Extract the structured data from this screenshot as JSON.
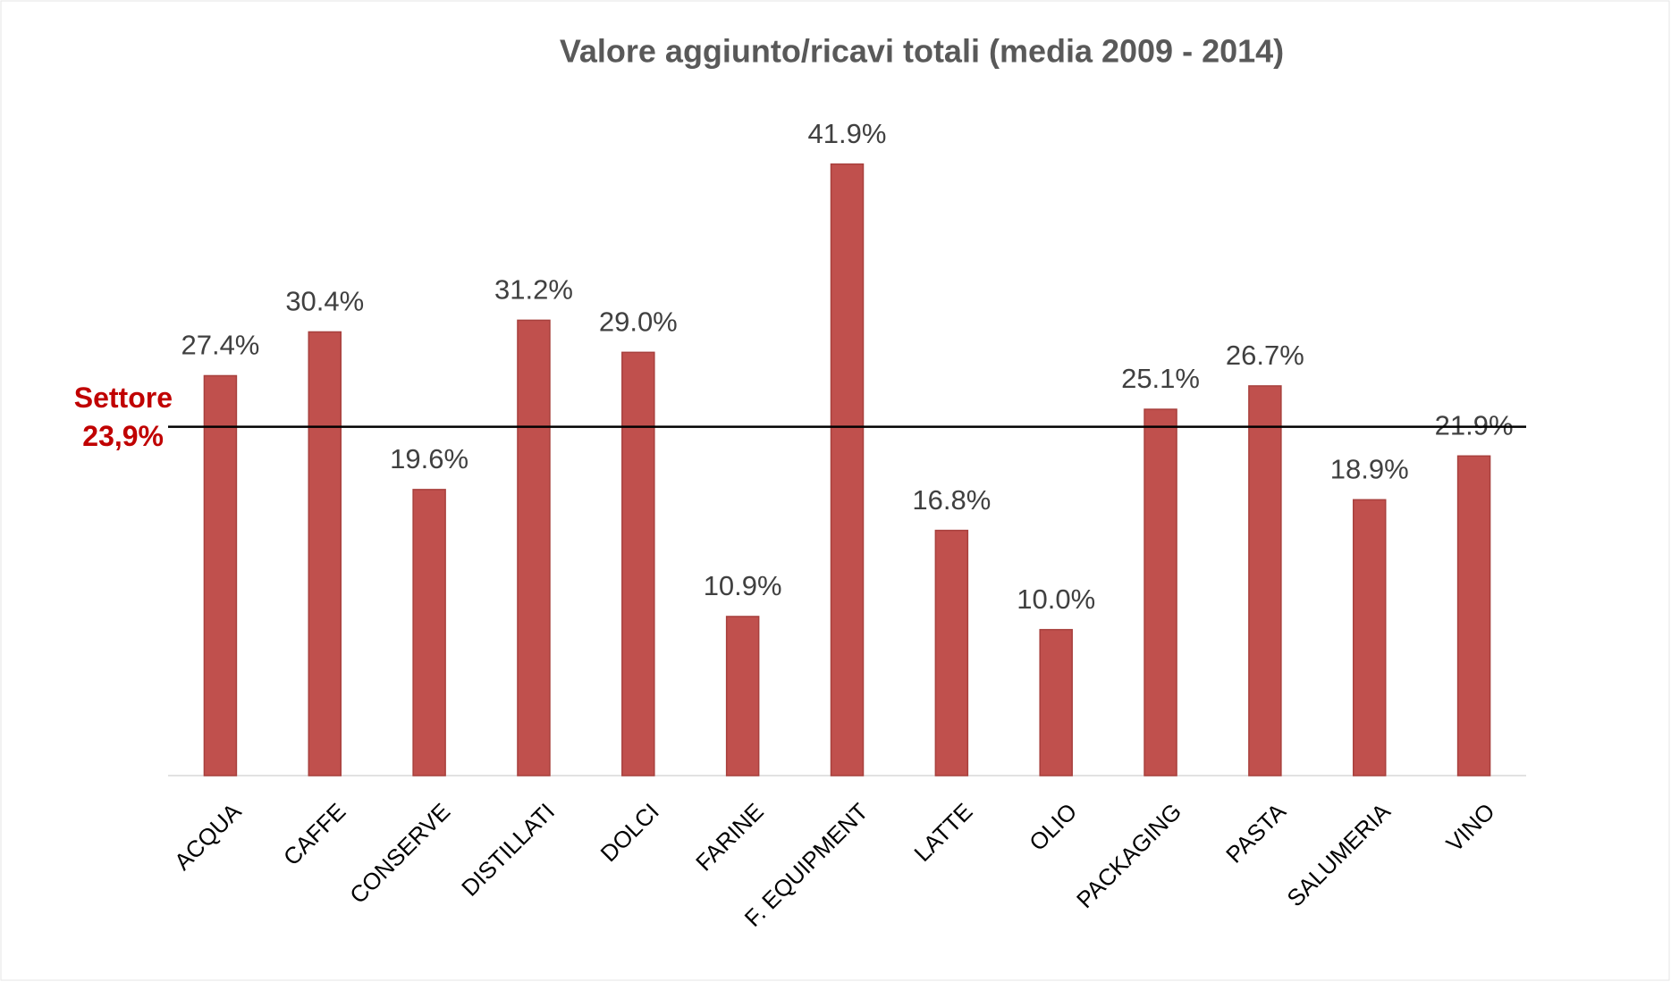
{
  "chart_data": {
    "type": "bar",
    "title": "Valore aggiunto/ricavi totali (media 2009 - 2014)",
    "categories": [
      "ACQUA",
      "CAFFE",
      "CONSERVE",
      "DISTILLATI",
      "DOLCI",
      "FARINE",
      "F. EQUIPMENT",
      "LATTE",
      "OLIO",
      "PACKAGING",
      "PASTA",
      "SALUMERIA",
      "VINO"
    ],
    "values": [
      27.4,
      30.4,
      19.6,
      31.2,
      29.0,
      10.9,
      41.9,
      16.8,
      10.0,
      25.1,
      26.7,
      18.9,
      21.9
    ],
    "value_labels": [
      "27.4%",
      "30.4%",
      "19.6%",
      "31.2%",
      "29.0%",
      "10.9%",
      "41.9%",
      "16.8%",
      "10.0%",
      "25.1%",
      "26.7%",
      "18.9%",
      "21.9%"
    ],
    "color": "#c0504d",
    "ylim": [
      0,
      45
    ],
    "reference": {
      "name": "Settore",
      "value": 23.9,
      "label": "23,9%"
    }
  }
}
